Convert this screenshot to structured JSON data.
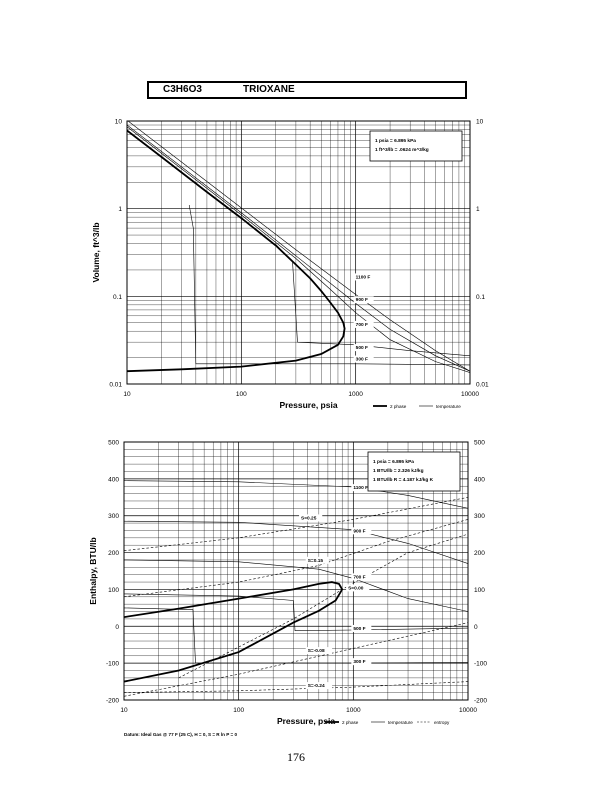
{
  "header": {
    "formula": "C3H6O3",
    "compound": "TRIOXANE"
  },
  "page_number": "176",
  "chart_data": [
    {
      "type": "line",
      "xscale": "log",
      "yscale": "log",
      "xlabel": "Pressure,  psia",
      "ylabel": "Volume, ft^3/lb",
      "xlim": [
        10,
        10000
      ],
      "ylim": [
        0.01,
        10
      ],
      "x_ticks": [
        "10",
        "100",
        "1000",
        "10000"
      ],
      "y_ticks": [
        "0.01",
        "0.1",
        "1",
        "10"
      ],
      "y_ticks_right": [
        "0.01",
        "0.1",
        "1",
        "10"
      ],
      "notes": [
        "1 psia  =  6.895 kPa",
        "1 ft^3/lb  =  .0624 m^3/kg"
      ],
      "legend": [
        {
          "label": "2 phase",
          "style": "thick"
        },
        {
          "label": "temperature",
          "style": "thin"
        }
      ],
      "series": [
        {
          "name": "2 phase",
          "role": "dome",
          "points": [
            [
              10,
              7.8
            ],
            [
              20,
              3.9
            ],
            [
              50,
              1.55
            ],
            [
              100,
              0.78
            ],
            [
              200,
              0.38
            ],
            [
              300,
              0.23
            ],
            [
              400,
              0.16
            ],
            [
              500,
              0.115
            ],
            [
              600,
              0.085
            ],
            [
              700,
              0.065
            ],
            [
              780,
              0.05
            ],
            [
              800,
              0.043
            ],
            [
              780,
              0.035
            ],
            [
              700,
              0.028
            ],
            [
              500,
              0.022
            ],
            [
              300,
              0.0185
            ],
            [
              100,
              0.0158
            ],
            [
              30,
              0.0147
            ],
            [
              10,
              0.014
            ]
          ]
        },
        {
          "name": "1100 F",
          "label_at": [
            1000,
            0.16
          ],
          "points": [
            [
              10,
              10.2
            ],
            [
              100,
              1.02
            ],
            [
              300,
              0.34
            ],
            [
              1000,
              0.105
            ],
            [
              2000,
              0.054
            ],
            [
              5000,
              0.024
            ],
            [
              10000,
              0.014
            ]
          ]
        },
        {
          "name": "900 F",
          "label_at": [
            1000,
            0.088
          ],
          "points": [
            [
              10,
              9
            ],
            [
              100,
              0.9
            ],
            [
              300,
              0.29
            ],
            [
              1000,
              0.083
            ],
            [
              2000,
              0.042
            ],
            [
              5000,
              0.021
            ],
            [
              10000,
              0.014
            ]
          ]
        },
        {
          "name": "700 F",
          "label_at": [
            1000,
            0.046
          ],
          "points": [
            [
              10,
              8.6
            ],
            [
              100,
              0.85
            ],
            [
              300,
              0.27
            ],
            [
              600,
              0.12
            ],
            [
              1000,
              0.065
            ],
            [
              2000,
              0.032
            ],
            [
              5000,
              0.018
            ],
            [
              10000,
              0.0135
            ]
          ]
        },
        {
          "name": "500 F",
          "label_at": [
            1000,
            0.025
          ],
          "points": [
            [
              200,
              0.39
            ],
            [
              280,
              0.25
            ],
            [
              310,
              0.03
            ],
            [
              1000,
              0.028
            ],
            [
              3000,
              0.024
            ],
            [
              10000,
              0.021
            ]
          ]
        },
        {
          "name": "300 F",
          "label_at": [
            1000,
            0.0185
          ],
          "points": [
            [
              35,
              1.1
            ],
            [
              38,
              0.6
            ],
            [
              40,
              0.017
            ],
            [
              1000,
              0.017
            ],
            [
              10000,
              0.0165
            ]
          ]
        }
      ]
    },
    {
      "type": "line",
      "xscale": "log",
      "yscale": "linear",
      "xlabel": "Pressure,  psia",
      "ylabel": "Enthalpy, BTU/lb",
      "xlim": [
        10,
        10000
      ],
      "ylim": [
        -200,
        500
      ],
      "x_ticks": [
        "10",
        "100",
        "1000",
        "10000"
      ],
      "y_ticks": [
        "-200",
        "-100",
        "0",
        "100",
        "200",
        "300",
        "400",
        "500"
      ],
      "y_ticks_right": [
        "-200",
        "-100",
        "0",
        "100",
        "200",
        "300",
        "400",
        "500"
      ],
      "notes": [
        "1 psia  =  6.895 kPa",
        "1 BTU/lb  =  2.326 kJ/kg",
        "1 BTU/lb R  =  4.187 kJ/kg K"
      ],
      "footnote": "Datum: Ideal Gas @ 77 F (25 C),  H = 0,  S = R ln P = 0",
      "legend": [
        {
          "label": "2 phase",
          "style": "thick"
        },
        {
          "label": "temperature",
          "style": "thin"
        },
        {
          "label": "entropy",
          "style": "dashed"
        }
      ],
      "series": [
        {
          "name": "2 phase",
          "role": "dome",
          "points": [
            [
              10,
              25
            ],
            [
              30,
              48
            ],
            [
              100,
              75
            ],
            [
              300,
              100
            ],
            [
              500,
              115
            ],
            [
              650,
              120
            ],
            [
              750,
              115
            ],
            [
              800,
              100
            ],
            [
              700,
              70
            ],
            [
              500,
              42
            ],
            [
              300,
              10
            ],
            [
              100,
              -70
            ],
            [
              30,
              -120
            ],
            [
              10,
              -150
            ]
          ]
        },
        {
          "name": "1100 F",
          "label_at": [
            1000,
            372
          ],
          "points": [
            [
              10,
              395
            ],
            [
              100,
              392
            ],
            [
              1000,
              378
            ],
            [
              3000,
              355
            ],
            [
              10000,
              320
            ]
          ]
        },
        {
          "name": "900 F",
          "label_at": [
            1000,
            255
          ],
          "points": [
            [
              10,
              285
            ],
            [
              100,
              282
            ],
            [
              1000,
              262
            ],
            [
              3000,
              225
            ],
            [
              10000,
              170
            ]
          ]
        },
        {
          "name": "700 F",
          "label_at": [
            1000,
            130
          ],
          "points": [
            [
              10,
              180
            ],
            [
              100,
              175
            ],
            [
              500,
              155
            ],
            [
              1000,
              130
            ],
            [
              3000,
              75
            ],
            [
              10000,
              40
            ]
          ]
        },
        {
          "name": "500 F",
          "label_at": [
            1000,
            -10
          ],
          "points": [
            [
              10,
              88
            ],
            [
              100,
              82
            ],
            [
              300,
              70
            ],
            [
              310,
              -12
            ],
            [
              1000,
              -10
            ],
            [
              10000,
              -5
            ]
          ]
        },
        {
          "name": "300 F",
          "label_at": [
            1000,
            -100
          ],
          "points": [
            [
              10,
              50
            ],
            [
              40,
              45
            ],
            [
              42,
              -100
            ],
            [
              1000,
              -100
            ],
            [
              10000,
              -98
            ]
          ]
        },
        {
          "name": "S=0.25",
          "style": "dashed",
          "label_at": [
            350,
            290
          ],
          "points": [
            [
              10,
              205
            ],
            [
              100,
              240
            ],
            [
              1000,
              290
            ],
            [
              10000,
              350
            ]
          ]
        },
        {
          "name": "S=0.15",
          "style": "dashed",
          "label_at": [
            400,
            175
          ],
          "points": [
            [
              10,
              80
            ],
            [
              100,
              120
            ],
            [
              500,
              165
            ],
            [
              2000,
              230
            ],
            [
              10000,
              290
            ]
          ]
        },
        {
          "name": "S=0.00",
          "style": "dashed",
          "label_at": [
            900,
            100
          ],
          "points": [
            [
              30,
              -140
            ],
            [
              300,
              20
            ],
            [
              800,
              100
            ],
            [
              3000,
              200
            ],
            [
              10000,
              250
            ]
          ]
        },
        {
          "name": "S=-0.08",
          "style": "dashed",
          "label_at": [
            400,
            -70
          ],
          "points": [
            [
              10,
              -190
            ],
            [
              100,
              -130
            ],
            [
              1000,
              -60
            ],
            [
              10000,
              10
            ]
          ]
        },
        {
          "name": "S=-0.24",
          "style": "dashed",
          "label_at": [
            400,
            -165
          ],
          "points": [
            [
              10,
              -180
            ],
            [
              100,
              -175
            ],
            [
              1000,
              -165
            ],
            [
              10000,
              -150
            ]
          ]
        }
      ]
    }
  ]
}
